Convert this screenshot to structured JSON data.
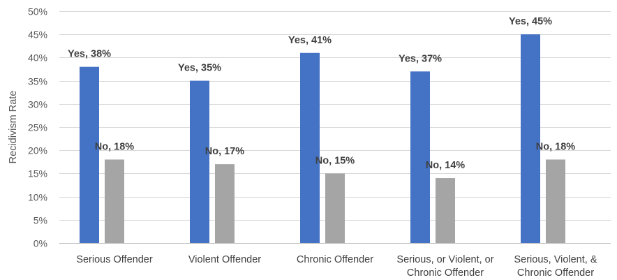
{
  "chart_data": {
    "type": "bar",
    "title": "",
    "xlabel": "",
    "ylabel": "Recidivism Rate",
    "ylim": [
      0,
      50
    ],
    "ytick_step": 5,
    "ytick_suffix": "%",
    "grid": true,
    "categories": [
      [
        "Serious Offender"
      ],
      [
        "Violent Offender"
      ],
      [
        "Chronic Offender"
      ],
      [
        "Serious, or Violent, or",
        "Chronic Offender"
      ],
      [
        "Serious, Violent, &",
        "Chronic Offender"
      ]
    ],
    "series": [
      {
        "name": "Yes",
        "color": "#4472c4",
        "values": [
          38,
          35,
          41,
          37,
          45
        ],
        "labels": [
          "Yes, 38%",
          "Yes, 35%",
          "Yes, 41%",
          "Yes, 37%",
          "Yes, 45%"
        ]
      },
      {
        "name": "No",
        "color": "#a5a5a5",
        "values": [
          18,
          17,
          15,
          14,
          18
        ],
        "labels": [
          "No, 18%",
          "No, 17%",
          "No, 15%",
          "No, 14%",
          "No, 18%"
        ]
      }
    ]
  }
}
